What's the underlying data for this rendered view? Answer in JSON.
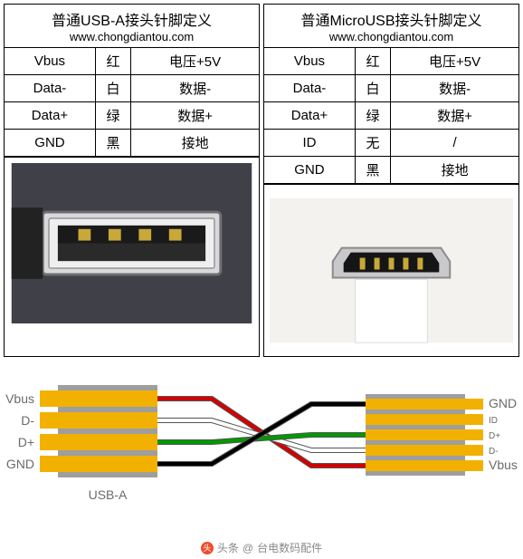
{
  "left": {
    "title": "普通USB-A接头针脚定义",
    "url": "www.chongdiantou.com",
    "rows": [
      {
        "pin": "Vbus",
        "color_name": "红",
        "desc": "电压+5V",
        "hex": "#d40000"
      },
      {
        "pin": "Data-",
        "color_name": "白",
        "desc": "数据-",
        "hex": "#ffffff"
      },
      {
        "pin": "Data+",
        "color_name": "绿",
        "desc": "数据+",
        "hex": "#00a000"
      },
      {
        "pin": "GND",
        "color_name": "黑",
        "desc": "接地",
        "hex": "#000000"
      }
    ],
    "photo": {
      "bg": "#404048",
      "shell": "#d9d9dc",
      "shell_dark": "#6e6e72",
      "inner": "#1a1a1a",
      "contact": "#c8a838"
    }
  },
  "right": {
    "title": "普通MicroUSB接头针脚定义",
    "url": "www.chongdiantou.com",
    "rows": [
      {
        "pin": "Vbus",
        "color_name": "红",
        "desc": "电压+5V",
        "hex": "#d40000"
      },
      {
        "pin": "Data-",
        "color_name": "白",
        "desc": "数据-",
        "hex": "#ffffff"
      },
      {
        "pin": "Data+",
        "color_name": "绿",
        "desc": "数据+",
        "hex": "#00a000"
      },
      {
        "pin": "ID",
        "color_name": "无",
        "desc": "/",
        "hex": null
      },
      {
        "pin": "GND",
        "color_name": "黑",
        "desc": "接地",
        "hex": "#000000"
      }
    ],
    "photo": {
      "bg": "#f4f2ee",
      "shell": "#c9c9cb",
      "shell_dark": "#8b8b8f",
      "inner": "#151515",
      "contact": "#c8a838",
      "body": "#ffffff"
    }
  },
  "wiring": {
    "bg": "#ffffff",
    "connector_fill": "#9e9e9e",
    "pin_fill": "#f2b100",
    "label_color": "#6b6b6b",
    "label_fontsize": 14,
    "small_label_fontsize": 10,
    "left_label": "USB-A",
    "left_pins": [
      {
        "name": "Vbus",
        "wire_color": "#d40000"
      },
      {
        "name": "D-",
        "wire_color": "#ffffff"
      },
      {
        "name": "D+",
        "wire_color": "#009a00"
      },
      {
        "name": "GND",
        "wire_color": "#000000"
      }
    ],
    "right_pins": [
      {
        "name": "GND",
        "wire_color": "#000000",
        "small": false
      },
      {
        "name": "ID",
        "wire_color": null,
        "small": true
      },
      {
        "name": "D+",
        "wire_color": "#009a00",
        "small": true
      },
      {
        "name": "D-",
        "wire_color": "#ffffff",
        "small": true
      },
      {
        "name": "Vbus",
        "wire_color": "#d40000",
        "small": false
      }
    ],
    "wire_outline": "#555555",
    "wire_width": 4
  },
  "footer": {
    "prefix": "头条",
    "author": "台电数码配件"
  }
}
